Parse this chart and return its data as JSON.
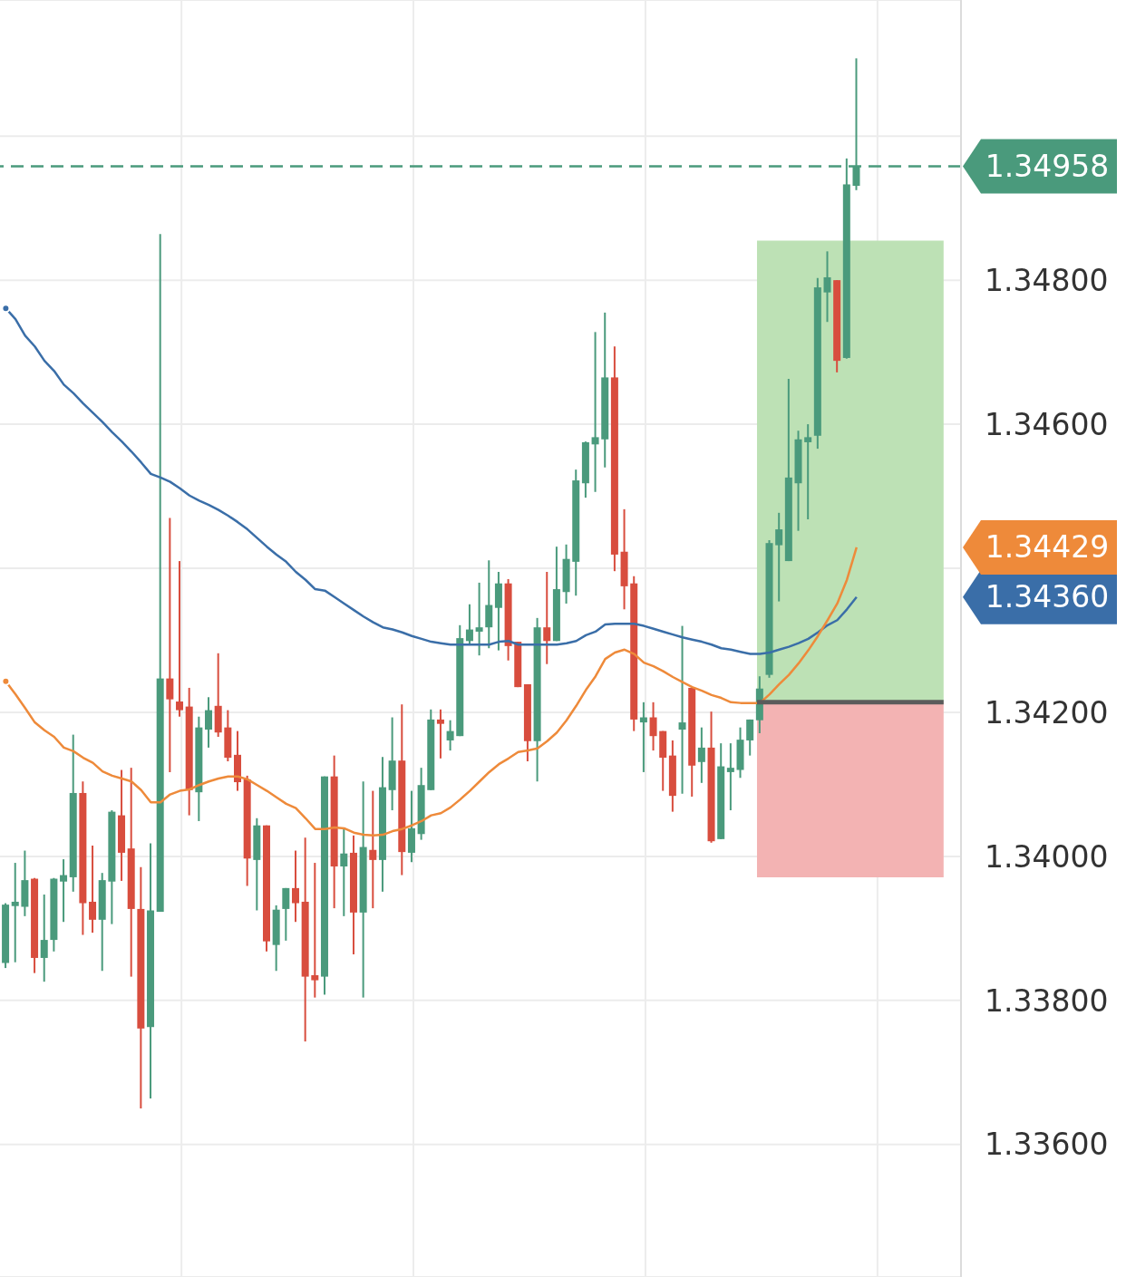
{
  "chart_data": {
    "type": "candlestick",
    "categories": [
      null,
      null,
      null,
      null,
      null,
      null,
      null,
      null,
      null,
      null,
      null,
      null,
      null,
      null,
      null,
      null,
      null,
      null,
      null,
      null,
      null,
      null,
      null,
      null,
      null,
      null,
      null,
      null,
      null,
      null,
      null,
      null,
      null,
      null,
      null,
      null,
      null,
      null,
      null,
      null,
      null,
      null,
      null,
      null,
      null,
      null,
      null,
      null,
      null,
      null,
      null,
      null,
      null,
      null,
      null,
      null,
      null,
      null,
      null,
      null,
      null,
      null,
      null,
      null,
      null,
      null,
      null,
      null,
      null,
      null,
      null,
      null,
      null,
      null,
      null,
      null,
      null,
      null,
      null,
      null,
      null,
      null,
      null,
      null,
      null,
      null,
      null,
      null,
      null
    ],
    "ohlc": [
      [
        1.33852,
        1.33935,
        1.33845,
        1.33933
      ],
      [
        1.33931,
        1.33991,
        1.33853,
        1.33937
      ],
      [
        1.3393,
        1.34008,
        1.33917,
        1.33967
      ],
      [
        1.33969,
        1.3397,
        1.33838,
        1.33859
      ],
      [
        1.33859,
        1.33947,
        1.33826,
        1.33884
      ],
      [
        1.33884,
        1.3397,
        1.33868,
        1.33969
      ],
      [
        1.33965,
        1.33996,
        1.33909,
        1.33974
      ],
      [
        1.33971,
        1.34169,
        1.33951,
        1.34088
      ],
      [
        1.34088,
        1.34104,
        1.33891,
        1.33935
      ],
      [
        1.33937,
        1.34015,
        1.33894,
        1.33912
      ],
      [
        1.33912,
        1.33977,
        1.33841,
        1.33967
      ],
      [
        1.33965,
        1.34064,
        1.33906,
        1.34062
      ],
      [
        1.34057,
        1.3412,
        1.33966,
        1.34005
      ],
      [
        1.34011,
        1.34123,
        1.33833,
        1.33927
      ],
      [
        1.33927,
        1.33985,
        1.3365,
        1.33761
      ],
      [
        1.33763,
        1.34018,
        1.33664,
        1.33925
      ],
      [
        1.33923,
        1.34864,
        1.33923,
        1.34247
      ],
      [
        1.34247,
        1.3447,
        1.34117,
        1.34218
      ],
      [
        1.34215,
        1.3441,
        1.34194,
        1.34203
      ],
      [
        1.34208,
        1.34234,
        1.34057,
        1.34092
      ],
      [
        1.34089,
        1.34194,
        1.34049,
        1.34179
      ],
      [
        1.34176,
        1.34221,
        1.34151,
        1.34203
      ],
      [
        1.34209,
        1.34282,
        1.34166,
        1.34172
      ],
      [
        1.34179,
        1.34203,
        1.34132,
        1.34137
      ],
      [
        1.34141,
        1.34174,
        1.34091,
        1.34103
      ],
      [
        1.34107,
        1.34112,
        1.33959,
        1.33997
      ],
      [
        1.33995,
        1.34053,
        1.33925,
        1.34043
      ],
      [
        1.34043,
        1.34043,
        1.33868,
        1.33882
      ],
      [
        1.33877,
        1.33932,
        1.33841,
        1.33926
      ],
      [
        1.33927,
        1.33956,
        1.33883,
        1.33956
      ],
      [
        1.33956,
        1.34008,
        1.33909,
        1.33935
      ],
      [
        1.33937,
        1.34026,
        1.33743,
        1.33833
      ],
      [
        1.33835,
        1.33991,
        1.33804,
        1.33828
      ],
      [
        1.33833,
        1.34111,
        1.33808,
        1.34111
      ],
      [
        1.34111,
        1.3414,
        1.33928,
        1.33986
      ],
      [
        1.33986,
        1.3404,
        1.33917,
        1.34004
      ],
      [
        1.34005,
        1.34029,
        1.33864,
        1.33922
      ],
      [
        1.33922,
        1.34104,
        1.33804,
        1.34013
      ],
      [
        1.34009,
        1.34091,
        1.33928,
        1.33995
      ],
      [
        1.33995,
        1.34138,
        1.33951,
        1.34096
      ],
      [
        1.34092,
        1.34193,
        1.34064,
        1.34133
      ],
      [
        1.34133,
        1.34211,
        1.33974,
        1.34006
      ],
      [
        1.34005,
        1.34091,
        1.33992,
        1.34039
      ],
      [
        1.34031,
        1.34123,
        1.34023,
        1.34099
      ],
      [
        1.34092,
        1.34204,
        1.34092,
        1.3419
      ],
      [
        1.3419,
        1.34204,
        1.34136,
        1.34184
      ],
      [
        1.34161,
        1.34189,
        1.34147,
        1.34174
      ],
      [
        1.34167,
        1.34321,
        1.34167,
        1.34303
      ],
      [
        1.34299,
        1.3435,
        1.34293,
        1.34315
      ],
      [
        1.34312,
        1.3438,
        1.34279,
        1.34318
      ],
      [
        1.34318,
        1.34411,
        1.34289,
        1.34349
      ],
      [
        1.34345,
        1.34395,
        1.34286,
        1.34379
      ],
      [
        1.34379,
        1.34385,
        1.34272,
        1.34292
      ],
      [
        1.34298,
        1.34298,
        1.34235,
        1.34235
      ],
      [
        1.34239,
        1.34239,
        1.34132,
        1.3416
      ],
      [
        1.3416,
        1.34331,
        1.34104,
        1.34318
      ],
      [
        1.34318,
        1.34395,
        1.34267,
        1.34299
      ],
      [
        1.34299,
        1.3443,
        1.34299,
        1.34371
      ],
      [
        1.34367,
        1.34433,
        1.34351,
        1.34413
      ],
      [
        1.34409,
        1.34537,
        1.34362,
        1.34522
      ],
      [
        1.34518,
        1.34576,
        1.34498,
        1.34575
      ],
      [
        1.34572,
        1.34728,
        1.34506,
        1.34582
      ],
      [
        1.34579,
        1.34755,
        1.3454,
        1.34665
      ],
      [
        1.34665,
        1.34708,
        1.34396,
        1.34419
      ],
      [
        1.34423,
        1.34482,
        1.34343,
        1.34375
      ],
      [
        1.34379,
        1.34389,
        1.34174,
        1.3419
      ],
      [
        1.34186,
        1.34214,
        1.34117,
        1.34193
      ],
      [
        1.34193,
        1.34214,
        1.34147,
        1.34167
      ],
      [
        1.34174,
        1.34174,
        1.34091,
        1.34137
      ],
      [
        1.3414,
        1.34161,
        1.34062,
        1.34084
      ],
      [
        1.34176,
        1.3432,
        1.34087,
        1.34186
      ],
      [
        1.34234,
        1.34234,
        1.34083,
        1.34126
      ],
      [
        1.34131,
        1.34179,
        1.34102,
        1.34151
      ],
      [
        1.34151,
        1.34201,
        1.34019,
        1.34021
      ],
      [
        1.34024,
        1.34157,
        1.34024,
        1.34125
      ],
      [
        1.34117,
        1.34157,
        1.34064,
        1.34123
      ],
      [
        1.3412,
        1.34179,
        1.34109,
        1.34162
      ],
      [
        1.34161,
        1.3419,
        1.3414,
        1.3419
      ],
      [
        1.34189,
        1.3425,
        1.34171,
        1.34233
      ],
      [
        1.34252,
        1.34439,
        1.34248,
        1.34435
      ],
      [
        1.34432,
        1.34477,
        1.34354,
        1.34454
      ],
      [
        1.3441,
        1.34663,
        1.3441,
        1.34526
      ],
      [
        1.34518,
        1.34591,
        1.34452,
        1.34579
      ],
      [
        1.34575,
        1.346,
        1.34468,
        1.34582
      ],
      [
        1.34584,
        1.34803,
        1.34566,
        1.3479
      ],
      [
        1.34783,
        1.3484,
        1.34742,
        1.34804
      ],
      [
        1.348,
        1.348,
        1.34672,
        1.34688
      ],
      [
        1.34692,
        1.34969,
        1.34691,
        1.34933
      ],
      [
        1.34931,
        1.35108,
        1.34925,
        1.34958
      ]
    ],
    "colors": [
      "#4a9a7c",
      "#4a9a7c",
      "#4a9a7c",
      "#d84d3e",
      "#4a9a7c",
      "#4a9a7c",
      "#4a9a7c",
      "#4a9a7c",
      "#d84d3e",
      "#d84d3e",
      "#4a9a7c",
      "#4a9a7c",
      "#d84d3e",
      "#d84d3e",
      "#d84d3e",
      "#4a9a7c",
      "#4a9a7c",
      "#d84d3e",
      "#d84d3e",
      "#d84d3e",
      "#4a9a7c",
      "#4a9a7c",
      "#d84d3e",
      "#d84d3e",
      "#d84d3e",
      "#d84d3e",
      "#4a9a7c",
      "#d84d3e",
      "#4a9a7c",
      "#4a9a7c",
      "#d84d3e",
      "#d84d3e",
      "#d84d3e",
      "#4a9a7c",
      "#d84d3e",
      "#4a9a7c",
      "#d84d3e",
      "#4a9a7c",
      "#d84d3e",
      "#4a9a7c",
      "#4a9a7c",
      "#d84d3e",
      "#4a9a7c",
      "#4a9a7c",
      "#4a9a7c",
      "#d84d3e",
      "#4a9a7c",
      "#4a9a7c",
      "#4a9a7c",
      "#4a9a7c",
      "#4a9a7c",
      "#4a9a7c",
      "#d84d3e",
      "#d84d3e",
      "#d84d3e",
      "#4a9a7c",
      "#d84d3e",
      "#4a9a7c",
      "#4a9a7c",
      "#4a9a7c",
      "#4a9a7c",
      "#4a9a7c",
      "#4a9a7c",
      "#d84d3e",
      "#d84d3e",
      "#d84d3e",
      "#4a9a7c",
      "#d84d3e",
      "#d84d3e",
      "#d84d3e",
      "#4a9a7c",
      "#d84d3e",
      "#4a9a7c",
      "#d84d3e",
      "#4a9a7c",
      "#4a9a7c",
      "#4a9a7c",
      "#4a9a7c",
      "#4a9a7c",
      "#4a9a7c",
      "#4a9a7c",
      "#4a9a7c",
      "#4a9a7c",
      "#4a9a7c",
      "#4a9a7c",
      "#4a9a7c",
      "#d84d3e",
      "#4a9a7c",
      "#4a9a7c"
    ],
    "series": [
      {
        "type": "line",
        "color": "#3a6ea8",
        "values": [
          1.34761,
          1.34746,
          1.34723,
          1.34708,
          1.34688,
          1.34674,
          1.34655,
          1.34643,
          1.34629,
          1.34616,
          1.34603,
          1.34589,
          1.34576,
          1.34562,
          1.34547,
          1.34531,
          1.34526,
          1.3452,
          1.34511,
          1.34501,
          1.34494,
          1.34488,
          1.34481,
          1.34473,
          1.34464,
          1.34454,
          1.34442,
          1.3443,
          1.34419,
          1.34409,
          1.34395,
          1.34384,
          1.34371,
          1.34369,
          1.3436,
          1.34351,
          1.34342,
          1.34333,
          1.34325,
          1.34318,
          1.34315,
          1.34311,
          1.34306,
          1.34302,
          1.34298,
          1.34296,
          1.34294,
          1.34294,
          1.34294,
          1.34294,
          1.34294,
          1.34298,
          1.34299,
          1.34294,
          1.34294,
          1.34294,
          1.34294,
          1.34294,
          1.34296,
          1.34299,
          1.34307,
          1.34312,
          1.34322,
          1.34323,
          1.34323,
          1.34323,
          1.3432,
          1.34316,
          1.34312,
          1.34308,
          1.34304,
          1.34301,
          1.34298,
          1.34294,
          1.34289,
          1.34287,
          1.34284,
          1.34281,
          1.34281,
          1.34283,
          1.34287,
          1.34291,
          1.34296,
          1.34302,
          1.34311,
          1.34321,
          1.34328,
          1.34343,
          1.3436
        ]
      },
      {
        "type": "line",
        "color": "#ee8a3a",
        "values": [
          1.34243,
          1.34225,
          1.34206,
          1.34186,
          1.34175,
          1.34166,
          1.34151,
          1.34146,
          1.34137,
          1.3413,
          1.34118,
          1.34112,
          1.34108,
          1.34104,
          1.34092,
          1.34075,
          1.34075,
          1.34086,
          1.34091,
          1.34093,
          1.34099,
          1.34104,
          1.34108,
          1.34111,
          1.34111,
          1.34107,
          1.34099,
          1.34091,
          1.34082,
          1.34073,
          1.34067,
          1.34053,
          1.34038,
          1.34038,
          1.3404,
          1.34039,
          1.34033,
          1.3403,
          1.34029,
          1.3403,
          1.34035,
          1.34038,
          1.34043,
          1.34049,
          1.34057,
          1.3406,
          1.34068,
          1.34079,
          1.34091,
          1.34104,
          1.34117,
          1.34128,
          1.34136,
          1.34145,
          1.34147,
          1.3415,
          1.3416,
          1.34172,
          1.34189,
          1.34209,
          1.34231,
          1.3425,
          1.34274,
          1.34283,
          1.34287,
          1.34281,
          1.34269,
          1.34264,
          1.34257,
          1.34249,
          1.34242,
          1.34235,
          1.3423,
          1.34224,
          1.3422,
          1.34214,
          1.34213,
          1.34213,
          1.34213,
          1.34225,
          1.34239,
          1.34252,
          1.34268,
          1.34286,
          1.34306,
          1.34328,
          1.34351,
          1.34384,
          1.34429
        ]
      }
    ],
    "annotations": [
      "1.34360",
      "1.34429"
    ],
    "ylim": [
      1.33416,
      1.35189
    ],
    "yticks": [
      {
        "value": 1.336,
        "label": "1.33600"
      },
      {
        "value": 1.338,
        "label": "1.33800"
      },
      {
        "value": 1.34,
        "label": "1.34000"
      },
      {
        "value": 1.342,
        "label": "1.34200"
      },
      {
        "value": 1.344,
        "label": null
      },
      {
        "value": 1.346,
        "label": "1.34600"
      },
      {
        "value": 1.348,
        "label": "1.34800"
      },
      {
        "value": 1.35,
        "label": null
      }
    ],
    "grid": true,
    "ref_lines": [
      {
        "axis": "y",
        "value": 1.34958,
        "label": "1.34958",
        "color": "#4a9a7c",
        "line_style": "dashed"
      },
      {
        "axis": "y",
        "value": 1.34214,
        "color": "#5b5b5b",
        "line_style": "solid"
      }
    ],
    "bands": [
      {
        "axis": "y",
        "from": 1.34214,
        "to": 1.34855,
        "color": "#bde1b5"
      },
      {
        "axis": "y",
        "from": 1.33971,
        "to": 1.34214,
        "color": "#f3b3b3"
      }
    ]
  }
}
